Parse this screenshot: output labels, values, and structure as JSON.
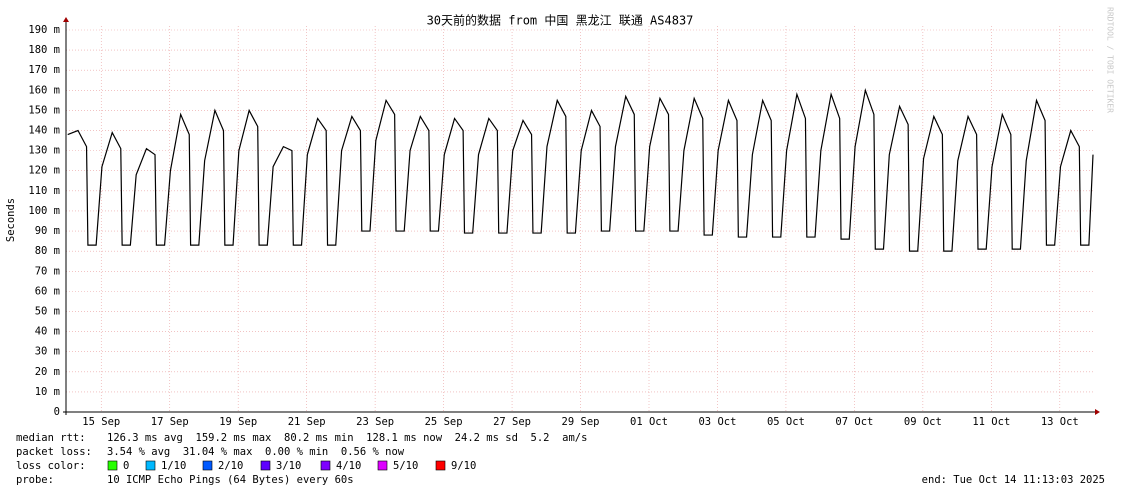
{
  "chart_data": {
    "type": "line",
    "title": "30天前的数据 from 中国 黑龙江 联通 AS4837",
    "y_label": "Seconds",
    "side_text": "RRDTOOL / TOBI OETIKER",
    "xlim": [
      0,
      30
    ],
    "ylim": [
      0,
      190
    ],
    "grid": true,
    "xticks": [
      {
        "value": 1.03,
        "label": "15 Sep"
      },
      {
        "value": 3.03,
        "label": "17 Sep"
      },
      {
        "value": 5.03,
        "label": "19 Sep"
      },
      {
        "value": 7.03,
        "label": "21 Sep"
      },
      {
        "value": 9.03,
        "label": "23 Sep"
      },
      {
        "value": 11.03,
        "label": "25 Sep"
      },
      {
        "value": 13.03,
        "label": "27 Sep"
      },
      {
        "value": 15.03,
        "label": "29 Sep"
      },
      {
        "value": 17.03,
        "label": "01 Oct"
      },
      {
        "value": 19.03,
        "label": "03 Oct"
      },
      {
        "value": 21.03,
        "label": "05 Oct"
      },
      {
        "value": 23.03,
        "label": "07 Oct"
      },
      {
        "value": 25.03,
        "label": "09 Oct"
      },
      {
        "value": 27.03,
        "label": "11 Oct"
      },
      {
        "value": 29.03,
        "label": "13 Oct"
      }
    ],
    "yticks": [
      0,
      {
        "value": 10,
        "label": "10 m"
      },
      {
        "value": 20,
        "label": "20 m"
      },
      {
        "value": 30,
        "label": "30 m"
      },
      {
        "value": 40,
        "label": "40 m"
      },
      {
        "value": 50,
        "label": "50 m"
      },
      {
        "value": 60,
        "label": "60 m"
      },
      {
        "value": 70,
        "label": "70 m"
      },
      {
        "value": 80,
        "label": "80 m"
      },
      {
        "value": 90,
        "label": "90 m"
      },
      {
        "value": 100,
        "label": "100 m"
      },
      {
        "value": 110,
        "label": "110 m"
      },
      {
        "value": 120,
        "label": "120 m"
      },
      {
        "value": 130,
        "label": "130 m"
      },
      {
        "value": 140,
        "label": "140 m"
      },
      {
        "value": 150,
        "label": "150 m"
      },
      {
        "value": 160,
        "label": "160 m"
      },
      {
        "value": 170,
        "label": "170 m"
      },
      {
        "value": 180,
        "label": "180 m"
      },
      {
        "value": 190,
        "label": "190 m"
      }
    ],
    "x": [
      0.05,
      0.35,
      0.6,
      0.64,
      0.88,
      1.05,
      1.35,
      1.6,
      1.64,
      1.88,
      2.05,
      2.35,
      2.6,
      2.64,
      2.88,
      3.05,
      3.35,
      3.6,
      3.64,
      3.88,
      4.05,
      4.35,
      4.6,
      4.64,
      4.88,
      5.05,
      5.35,
      5.6,
      5.64,
      5.88,
      6.05,
      6.35,
      6.6,
      6.64,
      6.88,
      7.05,
      7.35,
      7.6,
      7.64,
      7.88,
      8.05,
      8.35,
      8.6,
      8.64,
      8.88,
      9.05,
      9.35,
      9.6,
      9.64,
      9.88,
      10.05,
      10.35,
      10.6,
      10.64,
      10.88,
      11.05,
      11.35,
      11.6,
      11.64,
      11.88,
      12.05,
      12.35,
      12.6,
      12.64,
      12.88,
      13.05,
      13.35,
      13.6,
      13.64,
      13.88,
      14.05,
      14.35,
      14.6,
      14.64,
      14.88,
      15.05,
      15.35,
      15.6,
      15.64,
      15.88,
      16.05,
      16.35,
      16.6,
      16.64,
      16.88,
      17.05,
      17.35,
      17.6,
      17.64,
      17.88,
      18.05,
      18.35,
      18.6,
      18.64,
      18.88,
      19.05,
      19.35,
      19.6,
      19.64,
      19.88,
      20.05,
      20.35,
      20.6,
      20.64,
      20.88,
      21.05,
      21.35,
      21.6,
      21.64,
      21.88,
      22.05,
      22.35,
      22.6,
      22.64,
      22.88,
      23.05,
      23.35,
      23.6,
      23.64,
      23.88,
      24.05,
      24.35,
      24.6,
      24.64,
      24.88,
      25.05,
      25.35,
      25.6,
      25.64,
      25.88,
      26.05,
      26.35,
      26.6,
      26.64,
      26.88,
      27.05,
      27.35,
      27.6,
      27.64,
      27.88,
      28.05,
      28.35,
      28.6,
      28.64,
      28.88,
      29.05,
      29.35,
      29.6,
      29.64,
      29.88,
      30
    ],
    "series": [
      {
        "name": "median rtt",
        "color": "#000000",
        "values": [
          138,
          140,
          132,
          83,
          83,
          122,
          139,
          131,
          83,
          83,
          118,
          131,
          128,
          83,
          83,
          120,
          148,
          138,
          83,
          83,
          125,
          150,
          140,
          83,
          83,
          130,
          150,
          142,
          83,
          83,
          122,
          132,
          130,
          83,
          83,
          128,
          146,
          140,
          83,
          83,
          130,
          147,
          140,
          90,
          90,
          135,
          155,
          148,
          90,
          90,
          130,
          147,
          140,
          90,
          90,
          128,
          146,
          140,
          89,
          89,
          128,
          146,
          140,
          89,
          89,
          130,
          145,
          138,
          89,
          89,
          132,
          155,
          147,
          89,
          89,
          130,
          150,
          142,
          90,
          90,
          132,
          157,
          148,
          90,
          90,
          132,
          156,
          148,
          90,
          90,
          130,
          156,
          146,
          88,
          88,
          130,
          155,
          145,
          87,
          87,
          128,
          155,
          145,
          87,
          87,
          130,
          158,
          146,
          87,
          87,
          130,
          158,
          146,
          86,
          86,
          132,
          160,
          148,
          81,
          81,
          128,
          152,
          143,
          80,
          80,
          126,
          147,
          138,
          80,
          80,
          125,
          147,
          138,
          81,
          81,
          122,
          148,
          138,
          81,
          81,
          125,
          155,
          145,
          83,
          83,
          122,
          140,
          132,
          83,
          83,
          128
        ]
      }
    ],
    "stats": [
      {
        "label": "median rtt:",
        "text": "126.3 ms avg  159.2 ms max  80.2 ms min  128.1 ms now  24.2 ms sd  5.2  am/s"
      },
      {
        "label": "packet loss:",
        "text": "3.54 % avg  31.04 % max  0.00 % min  0.56 % now"
      }
    ],
    "loss_label": "loss color:",
    "loss_colors": [
      {
        "label": "0",
        "color": "#26ff00"
      },
      {
        "label": "1/10",
        "color": "#00b8ff"
      },
      {
        "label": "2/10",
        "color": "#0059ff"
      },
      {
        "label": "3/10",
        "color": "#5e00ff"
      },
      {
        "label": "4/10",
        "color": "#7e00ff"
      },
      {
        "label": "5/10",
        "color": "#dd00ff"
      },
      {
        "label": "9/10",
        "color": "#ff0000"
      }
    ],
    "probe_label": "probe:",
    "probe": "10 ICMP Echo Pings (64 Bytes) every 60s",
    "end": "end: Tue Oct 14 11:13:03 2025"
  }
}
